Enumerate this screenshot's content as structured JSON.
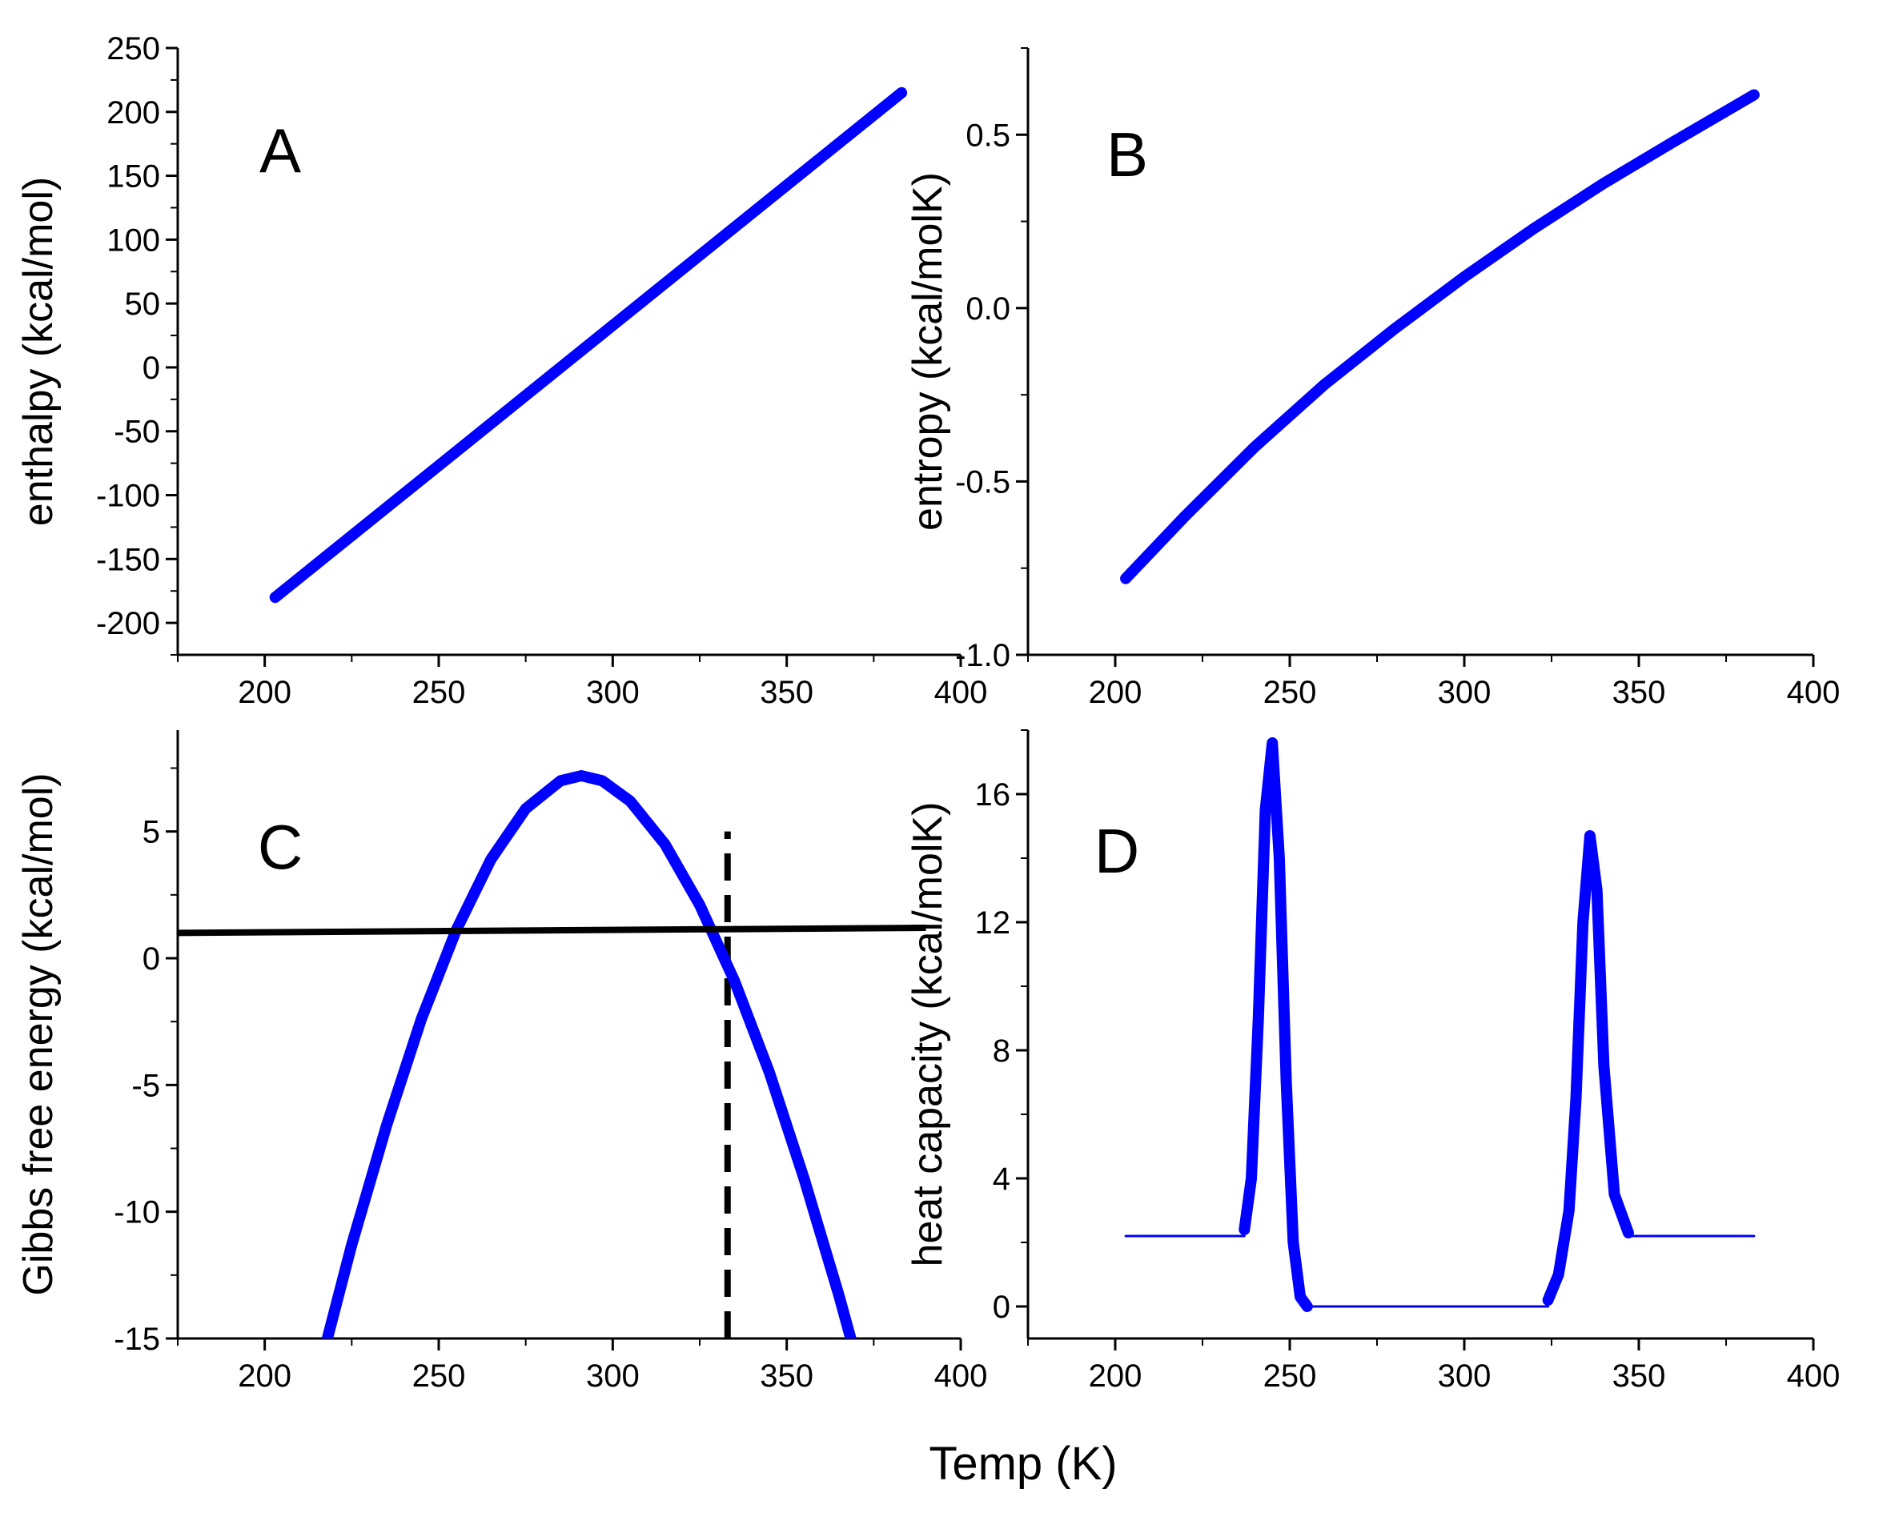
{
  "figure": {
    "xlabel": "Temp (K)",
    "series_color": "#0000ff",
    "reference_color": "#000000"
  },
  "chart_data": [
    {
      "id": "A",
      "panel_label": "A",
      "type": "line",
      "ylabel": "enthalpy (kcal/mol)",
      "xlim": [
        175,
        400
      ],
      "ylim": [
        -225,
        250
      ],
      "x_ticks": [
        200,
        250,
        300,
        350,
        400
      ],
      "x_tick_labels": [
        "200",
        "250",
        "300",
        "350",
        "400"
      ],
      "y_ticks": [
        -200,
        -150,
        -100,
        -50,
        0,
        50,
        100,
        150,
        200,
        250
      ],
      "y_tick_labels": [
        "-200",
        "-150",
        "-100",
        "-50",
        "0",
        "50",
        "100",
        "150",
        "200",
        "250"
      ],
      "series": [
        {
          "name": "enthalpy",
          "color": "#0000ff",
          "x": [
            203,
            383
          ],
          "y": [
            -180,
            215
          ]
        }
      ]
    },
    {
      "id": "B",
      "panel_label": "B",
      "type": "line",
      "ylabel": "entropy (kcal/molK)",
      "xlim": [
        175,
        400
      ],
      "ylim": [
        -1.0,
        0.75
      ],
      "x_ticks": [
        200,
        250,
        300,
        350,
        400
      ],
      "x_tick_labels": [
        "200",
        "250",
        "300",
        "350",
        "400"
      ],
      "y_ticks": [
        -1.0,
        -0.5,
        0.0,
        0.5
      ],
      "y_tick_labels": [
        "-1.0",
        "-0.5",
        "0.0",
        "0.5"
      ],
      "series": [
        {
          "name": "entropy",
          "color": "#0000ff",
          "x": [
            203,
            220,
            240,
            260,
            280,
            300,
            320,
            340,
            360,
            383
          ],
          "y": [
            -0.78,
            -0.6,
            -0.4,
            -0.22,
            -0.06,
            0.09,
            0.23,
            0.36,
            0.48,
            0.615
          ]
        }
      ]
    },
    {
      "id": "C",
      "panel_label": "C",
      "type": "line",
      "ylabel": "Gibbs free energy (kcal/mol)",
      "xlim": [
        175,
        400
      ],
      "ylim": [
        -15,
        9
      ],
      "x_ticks": [
        200,
        250,
        300,
        350,
        400
      ],
      "x_tick_labels": [
        "200",
        "250",
        "300",
        "350",
        "400"
      ],
      "y_ticks": [
        -15,
        -10,
        -5,
        0,
        5
      ],
      "y_tick_labels": [
        "-15",
        "-10",
        "-5",
        "0",
        "5"
      ],
      "series": [
        {
          "name": "Gibbs free energy",
          "color": "#0000ff",
          "x": [
            218,
            225,
            235,
            245,
            255,
            265,
            275,
            285,
            291,
            297,
            305,
            315,
            325,
            335,
            345,
            355,
            365,
            372
          ],
          "y": [
            -15,
            -11.3,
            -6.6,
            -2.4,
            1.1,
            3.9,
            5.9,
            7.0,
            7.2,
            7.0,
            6.2,
            4.5,
            2.1,
            -0.9,
            -4.5,
            -8.7,
            -13.3,
            -16.8
          ]
        }
      ],
      "reference_lines": [
        {
          "name": "horizontal-reference",
          "style": "solid",
          "color": "#000000",
          "x": [
            175,
            390
          ],
          "y": [
            1.0,
            1.2
          ]
        },
        {
          "name": "vertical-reference",
          "style": "dashed",
          "color": "#000000",
          "x": [
            333,
            333
          ],
          "y": [
            -15,
            5
          ]
        }
      ]
    },
    {
      "id": "D",
      "panel_label": "D",
      "type": "line",
      "ylabel": "heat capacity (kcal/molK)",
      "xlim": [
        175,
        400
      ],
      "ylim": [
        -1,
        18
      ],
      "x_ticks": [
        200,
        250,
        300,
        350,
        400
      ],
      "x_tick_labels": [
        "200",
        "250",
        "300",
        "350",
        "400"
      ],
      "y_ticks": [
        0,
        4,
        8,
        12,
        16
      ],
      "y_tick_labels": [
        "0",
        "4",
        "8",
        "12",
        "16"
      ],
      "series": [
        {
          "name": "heat capacity baseline",
          "color": "#0000ff",
          "width": "thin",
          "x": [
            203,
            237
          ],
          "y": [
            2.2,
            2.2
          ]
        },
        {
          "name": "heat capacity peak 1",
          "color": "#0000ff",
          "width": "thick",
          "x": [
            237,
            239,
            241,
            243,
            245,
            247,
            249,
            251,
            253,
            255
          ],
          "y": [
            2.4,
            4.0,
            9.0,
            15.5,
            17.6,
            14.0,
            7.0,
            2.0,
            0.3,
            0.0
          ]
        },
        {
          "name": "heat capacity gap",
          "color": "#0000ff",
          "width": "thin",
          "x": [
            255,
            324
          ],
          "y": [
            0.0,
            0.0
          ]
        },
        {
          "name": "heat capacity peak 2",
          "color": "#0000ff",
          "width": "thick",
          "x": [
            324,
            327,
            330,
            332,
            334,
            336,
            338,
            340,
            343,
            347
          ],
          "y": [
            0.2,
            1.0,
            3.0,
            6.5,
            12.0,
            14.7,
            13.0,
            7.5,
            3.5,
            2.3
          ]
        },
        {
          "name": "heat capacity tail",
          "color": "#0000ff",
          "width": "thin",
          "x": [
            347,
            383
          ],
          "y": [
            2.2,
            2.2
          ]
        }
      ]
    }
  ]
}
